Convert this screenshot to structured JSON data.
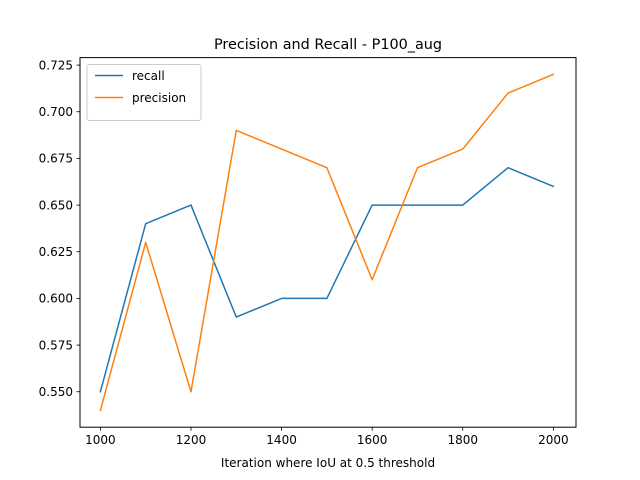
{
  "chart_data": {
    "type": "line",
    "title": "Precision and Recall - P100_aug",
    "xlabel": "Iteration where IoU at 0.5 threshold",
    "ylabel": "",
    "x": [
      1000,
      1100,
      1200,
      1300,
      1400,
      1500,
      1600,
      1700,
      1800,
      1900,
      2000
    ],
    "xlim": [
      955,
      2050
    ],
    "ylim": [
      0.531,
      0.729
    ],
    "xticks": [
      1000,
      1200,
      1400,
      1600,
      1800,
      2000
    ],
    "yticks": [
      0.55,
      0.575,
      0.6,
      0.625,
      0.65,
      0.675,
      0.7,
      0.725
    ],
    "grid": false,
    "legend_position": "upper-left",
    "series": [
      {
        "name": "recall",
        "color": "#1f77b4",
        "values": [
          0.55,
          0.64,
          0.65,
          0.59,
          0.6,
          0.6,
          0.65,
          0.65,
          0.65,
          0.67,
          0.66
        ]
      },
      {
        "name": "precision",
        "color": "#ff7f0e",
        "values": [
          0.54,
          0.63,
          0.55,
          0.69,
          0.68,
          0.67,
          0.61,
          0.67,
          0.68,
          0.71,
          0.72
        ]
      }
    ]
  }
}
